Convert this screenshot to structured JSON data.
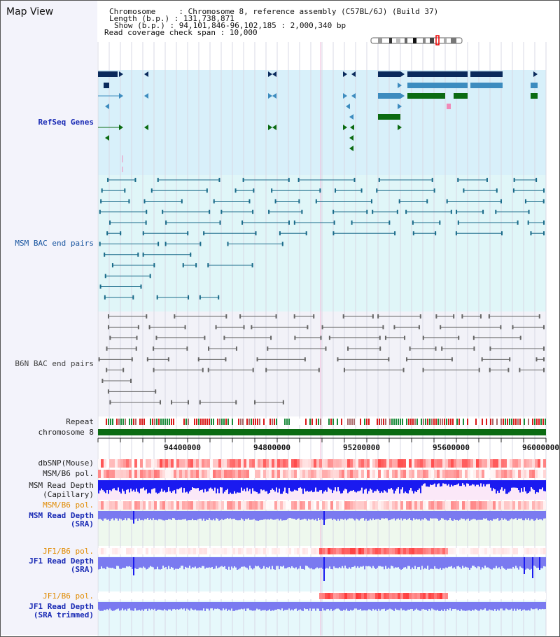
{
  "page": {
    "title": "Map View"
  },
  "info": {
    "chromosome_label": "Chromosome",
    "chromosome_value": "Chromosome 8, reference assembly (C57BL/6J) (Build 37)",
    "length_label": "Length (b.p.)",
    "length_value": "131,738,871",
    "show_label": "Show (b.p.)",
    "show_value": "94,101,846-96,102,185 : 2,000,340 bp",
    "coverage_label": "Read coverage check span",
    "coverage_value": "10,000"
  },
  "tracks": {
    "refseq": "RefSeq Genes",
    "msm_bac": "MSM BAC end pairs",
    "b6n_bac": "B6N BAC end pairs",
    "repeat": "Repeat",
    "chromosome": "chromosome 8",
    "dbsnp": "dbSNP(Mouse)",
    "msm_b6_pol": "MSM/B6 pol.",
    "msm_depth_cap": "MSM Read Depth",
    "msm_depth_cap_sub": "(Capillary)",
    "msm_b6_pol2": "MSM/B6 pol.",
    "msm_depth_sra": "MSM Read Depth",
    "msm_depth_sra_sub": "(SRA)",
    "jf1_b6_pol": "JF1/B6 pol.",
    "jf1_depth_sra": "JF1 Read Depth",
    "jf1_depth_sra_sub": "(SRA)",
    "jf1_b6_pol2": "JF1/B6 pol.",
    "jf1_depth_trim": "JF1 Read Depth",
    "jf1_depth_trim_sub": "(SRA trimmed)"
  },
  "ruler": {
    "ticks": [
      "94400000",
      "94800000",
      "95200000",
      "95600000",
      "96000000"
    ]
  },
  "colors": {
    "refseq_bg": "#d8f0fa",
    "msm_bg": "#e0f6f8",
    "b6n_bg": "#f2f2f8",
    "gene_dark": "#0a2a5c",
    "gene_mid": "#3d8cbf",
    "gene_green": "#0b6b12",
    "msm_line": "#1a6b8a",
    "b6n_line": "#666666",
    "chromosome": "#0b6b12",
    "depth_blue": "#1a1af0",
    "depth_light": "#7a7af0"
  }
}
